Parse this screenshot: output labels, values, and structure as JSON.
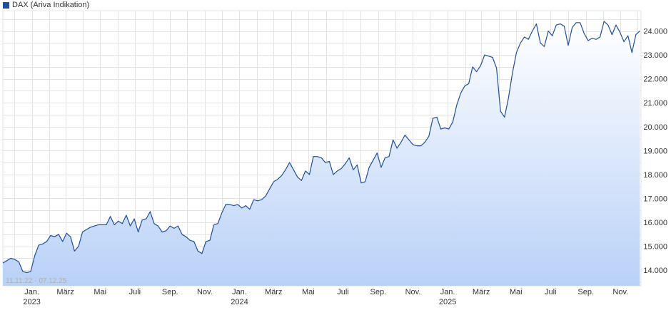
{
  "colors": {
    "line": "#1f4e9e",
    "fill_top": "#ffffff",
    "fill_bottom": "#b9d1f7",
    "grid": "#e4e4e4",
    "axis_text": "#333333",
    "swatch": "#1f4e9e"
  },
  "legend": {
    "label": "DAX (Ariva Indikation)"
  },
  "range_label": "11.11.22 - 07.12.25",
  "chart_data": {
    "type": "area",
    "series": [
      {
        "name": "DAX (Ariva Indikation)",
        "points": [
          [
            "2022-11-11",
            14300
          ],
          [
            "2022-11-18",
            14400
          ],
          [
            "2022-11-25",
            14500
          ],
          [
            "2022-12-02",
            14450
          ],
          [
            "2022-12-09",
            14350
          ],
          [
            "2022-12-16",
            13950
          ],
          [
            "2022-12-23",
            13900
          ],
          [
            "2022-12-30",
            13950
          ],
          [
            "2023-01-06",
            14600
          ],
          [
            "2023-01-13",
            15050
          ],
          [
            "2023-01-20",
            15100
          ],
          [
            "2023-01-27",
            15200
          ],
          [
            "2023-02-03",
            15450
          ],
          [
            "2023-02-10",
            15400
          ],
          [
            "2023-02-17",
            15500
          ],
          [
            "2023-02-24",
            15200
          ],
          [
            "2023-03-03",
            15550
          ],
          [
            "2023-03-10",
            15400
          ],
          [
            "2023-03-17",
            14800
          ],
          [
            "2023-03-24",
            15000
          ],
          [
            "2023-03-31",
            15600
          ],
          [
            "2023-04-07",
            15700
          ],
          [
            "2023-04-14",
            15800
          ],
          [
            "2023-04-21",
            15850
          ],
          [
            "2023-04-28",
            15900
          ],
          [
            "2023-05-05",
            15900
          ],
          [
            "2023-05-12",
            15900
          ],
          [
            "2023-05-19",
            16250
          ],
          [
            "2023-05-26",
            15900
          ],
          [
            "2023-06-02",
            16050
          ],
          [
            "2023-06-09",
            15950
          ],
          [
            "2023-06-16",
            16300
          ],
          [
            "2023-06-23",
            15850
          ],
          [
            "2023-06-30",
            16150
          ],
          [
            "2023-07-07",
            15600
          ],
          [
            "2023-07-14",
            16100
          ],
          [
            "2023-07-21",
            16150
          ],
          [
            "2023-07-28",
            16450
          ],
          [
            "2023-08-04",
            15950
          ],
          [
            "2023-08-11",
            15850
          ],
          [
            "2023-08-18",
            15600
          ],
          [
            "2023-08-25",
            15650
          ],
          [
            "2023-09-01",
            15850
          ],
          [
            "2023-09-08",
            15750
          ],
          [
            "2023-09-15",
            15850
          ],
          [
            "2023-09-22",
            15500
          ],
          [
            "2023-09-29",
            15400
          ],
          [
            "2023-10-06",
            15250
          ],
          [
            "2023-10-13",
            15200
          ],
          [
            "2023-10-20",
            14800
          ],
          [
            "2023-10-27",
            14700
          ],
          [
            "2023-11-03",
            15200
          ],
          [
            "2023-11-10",
            15250
          ],
          [
            "2023-11-17",
            15900
          ],
          [
            "2023-11-24",
            15950
          ],
          [
            "2023-12-01",
            16400
          ],
          [
            "2023-12-08",
            16750
          ],
          [
            "2023-12-15",
            16750
          ],
          [
            "2023-12-22",
            16700
          ],
          [
            "2023-12-29",
            16750
          ],
          [
            "2024-01-05",
            16600
          ],
          [
            "2024-01-12",
            16700
          ],
          [
            "2024-01-19",
            16550
          ],
          [
            "2024-01-26",
            16950
          ],
          [
            "2024-02-02",
            16900
          ],
          [
            "2024-02-09",
            16950
          ],
          [
            "2024-02-16",
            17100
          ],
          [
            "2024-02-23",
            17400
          ],
          [
            "2024-03-01",
            17700
          ],
          [
            "2024-03-08",
            17800
          ],
          [
            "2024-03-15",
            17950
          ],
          [
            "2024-03-22",
            18200
          ],
          [
            "2024-03-29",
            18500
          ],
          [
            "2024-04-05",
            18200
          ],
          [
            "2024-04-12",
            17900
          ],
          [
            "2024-04-19",
            17750
          ],
          [
            "2024-04-26",
            18150
          ],
          [
            "2024-05-03",
            18000
          ],
          [
            "2024-05-10",
            18750
          ],
          [
            "2024-05-17",
            18750
          ],
          [
            "2024-05-24",
            18700
          ],
          [
            "2024-05-31",
            18500
          ],
          [
            "2024-06-07",
            18550
          ],
          [
            "2024-06-14",
            18000
          ],
          [
            "2024-06-21",
            18150
          ],
          [
            "2024-06-28",
            18250
          ],
          [
            "2024-07-05",
            18450
          ],
          [
            "2024-07-12",
            18700
          ],
          [
            "2024-07-19",
            18200
          ],
          [
            "2024-07-26",
            18400
          ],
          [
            "2024-08-02",
            17650
          ],
          [
            "2024-08-09",
            17700
          ],
          [
            "2024-08-16",
            18300
          ],
          [
            "2024-08-23",
            18600
          ],
          [
            "2024-08-30",
            18900
          ],
          [
            "2024-09-06",
            18300
          ],
          [
            "2024-09-13",
            18700
          ],
          [
            "2024-09-20",
            18750
          ],
          [
            "2024-09-27",
            19450
          ],
          [
            "2024-10-04",
            19100
          ],
          [
            "2024-10-11",
            19350
          ],
          [
            "2024-10-18",
            19650
          ],
          [
            "2024-10-25",
            19450
          ],
          [
            "2024-11-01",
            19250
          ],
          [
            "2024-11-08",
            19200
          ],
          [
            "2024-11-15",
            19200
          ],
          [
            "2024-11-22",
            19350
          ],
          [
            "2024-11-29",
            19600
          ],
          [
            "2024-12-06",
            20350
          ],
          [
            "2024-12-13",
            20400
          ],
          [
            "2024-12-20",
            19900
          ],
          [
            "2024-12-27",
            19950
          ],
          [
            "2025-01-03",
            19900
          ],
          [
            "2025-01-10",
            20200
          ],
          [
            "2025-01-17",
            20900
          ],
          [
            "2025-01-24",
            21400
          ],
          [
            "2025-01-31",
            21700
          ],
          [
            "2025-02-07",
            21800
          ],
          [
            "2025-02-14",
            22500
          ],
          [
            "2025-02-21",
            22300
          ],
          [
            "2025-02-28",
            22550
          ],
          [
            "2025-03-07",
            23000
          ],
          [
            "2025-03-14",
            22950
          ],
          [
            "2025-03-21",
            22900
          ],
          [
            "2025-03-28",
            22450
          ],
          [
            "2025-04-04",
            20650
          ],
          [
            "2025-04-11",
            20400
          ],
          [
            "2025-04-18",
            21200
          ],
          [
            "2025-04-25",
            22250
          ],
          [
            "2025-05-02",
            23100
          ],
          [
            "2025-05-09",
            23500
          ],
          [
            "2025-05-16",
            23750
          ],
          [
            "2025-05-23",
            23650
          ],
          [
            "2025-05-30",
            24000
          ],
          [
            "2025-06-06",
            24300
          ],
          [
            "2025-06-13",
            23500
          ],
          [
            "2025-06-20",
            23350
          ],
          [
            "2025-06-27",
            24000
          ],
          [
            "2025-07-04",
            23800
          ],
          [
            "2025-07-11",
            24250
          ],
          [
            "2025-07-18",
            24300
          ],
          [
            "2025-07-25",
            24200
          ],
          [
            "2025-08-01",
            23400
          ],
          [
            "2025-08-08",
            24150
          ],
          [
            "2025-08-15",
            24350
          ],
          [
            "2025-08-22",
            24350
          ],
          [
            "2025-08-29",
            23900
          ],
          [
            "2025-09-05",
            23600
          ],
          [
            "2025-09-12",
            23700
          ],
          [
            "2025-09-19",
            23650
          ],
          [
            "2025-09-26",
            23750
          ],
          [
            "2025-10-03",
            24400
          ],
          [
            "2025-10-10",
            24250
          ],
          [
            "2025-10-17",
            23850
          ],
          [
            "2025-10-24",
            24250
          ],
          [
            "2025-10-31",
            23950
          ],
          [
            "2025-11-07",
            23550
          ],
          [
            "2025-11-14",
            23800
          ],
          [
            "2025-11-21",
            23100
          ],
          [
            "2025-11-28",
            23850
          ],
          [
            "2025-12-05",
            24000
          ]
        ]
      }
    ],
    "x_ticks": [
      {
        "date": "2023-01-01",
        "label": "Jan.",
        "year": "2023"
      },
      {
        "date": "2023-03-01",
        "label": "März"
      },
      {
        "date": "2023-05-01",
        "label": "Mai"
      },
      {
        "date": "2023-07-01",
        "label": "Juli"
      },
      {
        "date": "2023-09-01",
        "label": "Sep."
      },
      {
        "date": "2023-11-01",
        "label": "Nov."
      },
      {
        "date": "2024-01-01",
        "label": "Jan.",
        "year": "2024"
      },
      {
        "date": "2024-03-01",
        "label": "März"
      },
      {
        "date": "2024-05-01",
        "label": "Mai"
      },
      {
        "date": "2024-07-01",
        "label": "Juli"
      },
      {
        "date": "2024-09-01",
        "label": "Sep."
      },
      {
        "date": "2024-11-01",
        "label": "Nov."
      },
      {
        "date": "2025-01-01",
        "label": "Jan.",
        "year": "2025"
      },
      {
        "date": "2025-03-01",
        "label": "März"
      },
      {
        "date": "2025-05-01",
        "label": "Mai"
      },
      {
        "date": "2025-07-01",
        "label": "Juli"
      },
      {
        "date": "2025-09-01",
        "label": "Sep."
      },
      {
        "date": "2025-11-01",
        "label": "Nov."
      }
    ],
    "y_ticks": [
      {
        "value": 14000,
        "label": "14.000"
      },
      {
        "value": 15000,
        "label": "15.000"
      },
      {
        "value": 16000,
        "label": "16.000"
      },
      {
        "value": 17000,
        "label": "17.000"
      },
      {
        "value": 18000,
        "label": "18.000"
      },
      {
        "value": 19000,
        "label": "19.000"
      },
      {
        "value": 20000,
        "label": "20.000"
      },
      {
        "value": 21000,
        "label": "21.000"
      },
      {
        "value": 22000,
        "label": "22.000"
      },
      {
        "value": 23000,
        "label": "23.000"
      },
      {
        "value": 24000,
        "label": "24.000"
      }
    ],
    "xlim": [
      "2022-11-11",
      "2025-12-07"
    ],
    "ylim": [
      13350,
      24850
    ],
    "grid": true,
    "legend_position": "top-left",
    "title": "",
    "xlabel": "",
    "ylabel": ""
  }
}
